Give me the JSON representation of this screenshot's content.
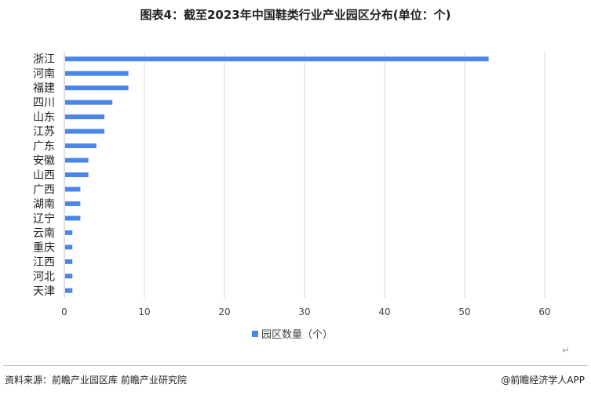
{
  "title": "图表4：截至2023年中国鞋类行业产业园区分布(单位：个)",
  "footer": {
    "source": "资料来源：前瞻产业园区库 前瞻产业研究院",
    "brand": "@前瞻经济学人APP",
    "return_mark": "↵"
  },
  "chart_data": {
    "type": "bar",
    "orientation": "horizontal",
    "title": "图表4：截至2023年中国鞋类行业产业园区分布(单位：个)",
    "categories": [
      "浙江",
      "河南",
      "福建",
      "四川",
      "山东",
      "江苏",
      "广东",
      "安徽",
      "山西",
      "广西",
      "湖南",
      "辽宁",
      "云南",
      "重庆",
      "江西",
      "河北",
      "天津"
    ],
    "series": [
      {
        "name": "园区数量（个）",
        "values": [
          53,
          8,
          8,
          6,
          5,
          5,
          4,
          3,
          3,
          2,
          2,
          2,
          1,
          1,
          1,
          1,
          1
        ]
      }
    ],
    "xlim": [
      0,
      60
    ],
    "xticks": [
      0,
      10,
      20,
      30,
      40,
      50,
      60
    ],
    "grid": true,
    "legend": "bottom-center",
    "colors": {
      "bar": "#4a86e8",
      "grid": "#d9d9d9",
      "axis": "#bfbfbf"
    }
  }
}
